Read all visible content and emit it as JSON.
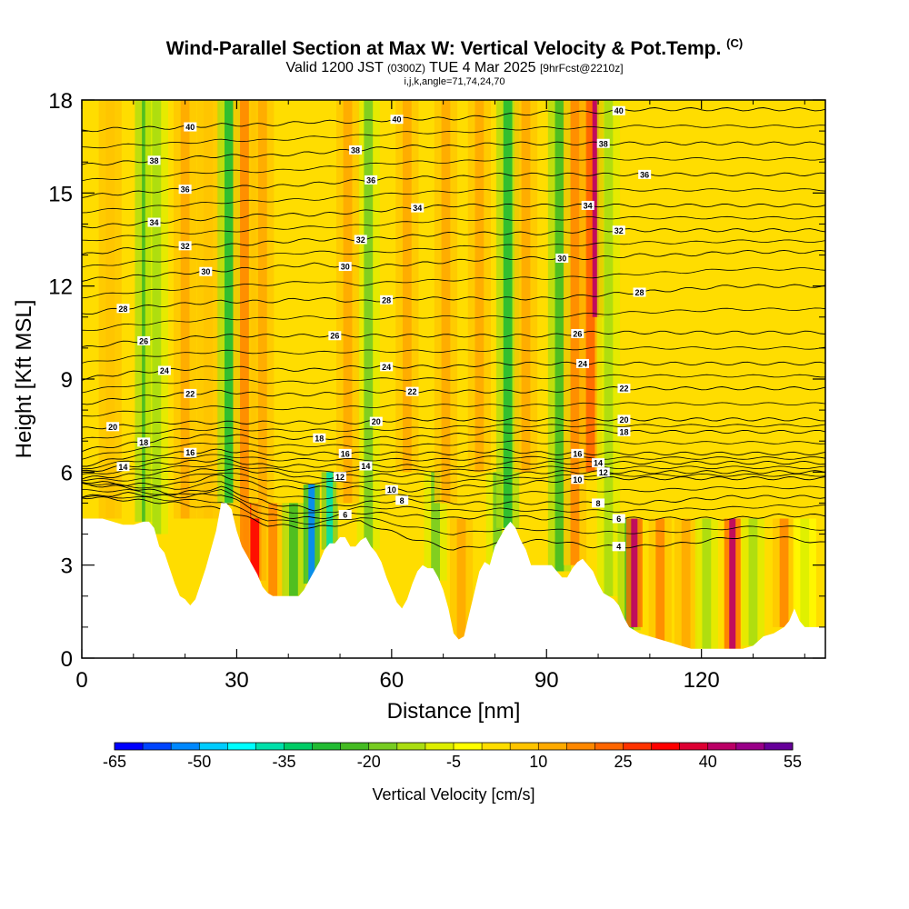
{
  "header": {
    "title": "Wind-Parallel Section at Max W: Vertical Velocity & Pot.Temp.",
    "title_mark": "(C)",
    "valid_prefix": "Valid 1200 JST",
    "valid_utc": "(0300Z)",
    "valid_date": "TUE 4 Mar 2025",
    "forecast": "[9hrFcst@2210z]",
    "grid_info": "i,j,k,angle=71,74,24,70"
  },
  "chart_data": {
    "type": "heatmap",
    "xlabel": "Distance [nm]",
    "ylabel": "Height [Kft MSL]",
    "xlim": [
      0,
      144
    ],
    "ylim": [
      0,
      18
    ],
    "x_ticks": [
      0,
      30,
      60,
      90,
      120
    ],
    "y_ticks": [
      0,
      3,
      6,
      9,
      12,
      15,
      18
    ],
    "x_tick_labels": [
      "0",
      "30",
      "60",
      "90",
      "120"
    ],
    "y_tick_labels": [
      "0",
      "3",
      "6",
      "9",
      "12",
      "15",
      "18"
    ],
    "colorbar": {
      "label": "Vertical Velocity [cm/s]",
      "min": -65,
      "max": 55,
      "step": 5,
      "tick_values": [
        -65,
        -50,
        -35,
        -20,
        -5,
        10,
        25,
        40,
        55
      ],
      "tick_labels": [
        "-65",
        "-50",
        "-35",
        "-20",
        "-5",
        "10",
        "25",
        "40",
        "55"
      ],
      "colors": [
        "#0000ff",
        "#0044ff",
        "#0088ff",
        "#00ccff",
        "#00ffff",
        "#00e0aa",
        "#00cc66",
        "#22bb33",
        "#44bb22",
        "#77cc22",
        "#aadd11",
        "#ddee00",
        "#ffff00",
        "#ffdd00",
        "#ffc400",
        "#ffaa00",
        "#ff8800",
        "#ff6600",
        "#ff3300",
        "#ff0000",
        "#dd0033",
        "#bb0066",
        "#990088",
        "#660099"
      ]
    },
    "terrain": [
      [
        0,
        4.5
      ],
      [
        4,
        4.5
      ],
      [
        6,
        4.4
      ],
      [
        8,
        4.3
      ],
      [
        10,
        4.3
      ],
      [
        12,
        4.4
      ],
      [
        13,
        4.4
      ],
      [
        14,
        4.2
      ],
      [
        15,
        3.6
      ],
      [
        16,
        3.4
      ],
      [
        17,
        2.9
      ],
      [
        18,
        2.4
      ],
      [
        19,
        2.0
      ],
      [
        20,
        1.9
      ],
      [
        21,
        1.7
      ],
      [
        22,
        1.9
      ],
      [
        23,
        2.4
      ],
      [
        24,
        2.9
      ],
      [
        25,
        3.5
      ],
      [
        26,
        4.1
      ],
      [
        27,
        5.0
      ],
      [
        28,
        5.0
      ],
      [
        29,
        4.8
      ],
      [
        30,
        4.1
      ],
      [
        31,
        3.6
      ],
      [
        32,
        3.3
      ],
      [
        33,
        3.0
      ],
      [
        34,
        2.7
      ],
      [
        35,
        2.3
      ],
      [
        36,
        2.1
      ],
      [
        37,
        2.0
      ],
      [
        38,
        2.0
      ],
      [
        40,
        2.0
      ],
      [
        42,
        2.0
      ],
      [
        43,
        2.2
      ],
      [
        44,
        2.5
      ],
      [
        45,
        2.8
      ],
      [
        46,
        3.1
      ],
      [
        47,
        3.5
      ],
      [
        48,
        3.7
      ],
      [
        49,
        3.7
      ],
      [
        50,
        3.9
      ],
      [
        51,
        3.9
      ],
      [
        52,
        3.6
      ],
      [
        53,
        3.6
      ],
      [
        54,
        3.8
      ],
      [
        55,
        3.9
      ],
      [
        56,
        3.6
      ],
      [
        57,
        3.4
      ],
      [
        58,
        3.1
      ],
      [
        59,
        2.6
      ],
      [
        60,
        2.2
      ],
      [
        61,
        1.8
      ],
      [
        62,
        1.6
      ],
      [
        63,
        1.9
      ],
      [
        64,
        2.4
      ],
      [
        65,
        2.8
      ],
      [
        66,
        3.0
      ],
      [
        67,
        2.9
      ],
      [
        68,
        2.9
      ],
      [
        69,
        2.6
      ],
      [
        70,
        2.2
      ],
      [
        71,
        1.6
      ],
      [
        72,
        0.8
      ],
      [
        73,
        0.6
      ],
      [
        74,
        0.7
      ],
      [
        75,
        1.4
      ],
      [
        76,
        2.1
      ],
      [
        77,
        2.8
      ],
      [
        78,
        3.1
      ],
      [
        79,
        3.0
      ],
      [
        80,
        3.6
      ],
      [
        81,
        3.9
      ],
      [
        82,
        4.2
      ],
      [
        83,
        4.4
      ],
      [
        84,
        4.2
      ],
      [
        85,
        3.8
      ],
      [
        86,
        3.5
      ],
      [
        87,
        3.0
      ],
      [
        89,
        3.0
      ],
      [
        91,
        3.0
      ],
      [
        92,
        2.8
      ],
      [
        93,
        2.6
      ],
      [
        94,
        2.6
      ],
      [
        95,
        2.9
      ],
      [
        96,
        3.1
      ],
      [
        97,
        3.2
      ],
      [
        98,
        3.0
      ],
      [
        99,
        2.8
      ],
      [
        100,
        2.4
      ],
      [
        101,
        2.1
      ],
      [
        102,
        2.0
      ],
      [
        103,
        1.9
      ],
      [
        104,
        1.7
      ],
      [
        105,
        1.3
      ],
      [
        106,
        1.0
      ],
      [
        107,
        0.9
      ],
      [
        108,
        0.8
      ],
      [
        110,
        0.7
      ],
      [
        112,
        0.6
      ],
      [
        114,
        0.5
      ],
      [
        116,
        0.4
      ],
      [
        118,
        0.3
      ],
      [
        120,
        0.3
      ],
      [
        122,
        0.3
      ],
      [
        124,
        0.3
      ],
      [
        126,
        0.3
      ],
      [
        128,
        0.3
      ],
      [
        130,
        0.4
      ],
      [
        132,
        0.7
      ],
      [
        134,
        0.8
      ],
      [
        136,
        1.0
      ],
      [
        137,
        1.2
      ],
      [
        138,
        1.6
      ],
      [
        139,
        1.2
      ],
      [
        140,
        1.0
      ],
      [
        142,
        1.0
      ],
      [
        144,
        1.0
      ]
    ],
    "updraft_columns": [
      {
        "x": 5.5,
        "z0": 4.5,
        "z1": 18,
        "w": 8
      },
      {
        "x": 12.5,
        "z0": 4.4,
        "z1": 18,
        "w": -22
      },
      {
        "x": 14.5,
        "z0": 4.0,
        "z1": 18,
        "w": -12
      },
      {
        "x": 20.0,
        "z0": 4.5,
        "z1": 18,
        "w": 12
      },
      {
        "x": 24.5,
        "z0": 4.5,
        "z1": 18,
        "w": 8
      },
      {
        "x": 28.5,
        "z0": 5.0,
        "z1": 18,
        "w": -30
      },
      {
        "x": 31.5,
        "z0": 2.5,
        "z1": 18,
        "w": 15
      },
      {
        "x": 33.5,
        "z0": 2.5,
        "z1": 5,
        "w": 30
      },
      {
        "x": 35.0,
        "z0": 4.5,
        "z1": 18,
        "w": 10
      },
      {
        "x": 37.0,
        "z0": 2.0,
        "z1": 5,
        "w": 15
      },
      {
        "x": 41.0,
        "z0": 2.0,
        "z1": 5,
        "w": -25
      },
      {
        "x": 44.5,
        "z0": 2.4,
        "z1": 5.6,
        "w": -55
      },
      {
        "x": 48.0,
        "z0": 3.5,
        "z1": 6,
        "w": -40
      },
      {
        "x": 55.5,
        "z0": 3.5,
        "z1": 18,
        "w": -18
      },
      {
        "x": 51.5,
        "z0": 5,
        "z1": 18,
        "w": 10
      },
      {
        "x": 63.0,
        "z0": 6,
        "z1": 18,
        "w": 12
      },
      {
        "x": 68.5,
        "z0": 2.5,
        "z1": 6,
        "w": -20
      },
      {
        "x": 70.5,
        "z0": 5,
        "z1": 18,
        "w": 10
      },
      {
        "x": 73.5,
        "z0": 0.6,
        "z1": 4.5,
        "w": 12
      },
      {
        "x": 77.0,
        "z0": 6,
        "z1": 18,
        "w": 10
      },
      {
        "x": 80.5,
        "z0": 3.0,
        "z1": 6,
        "w": -18
      },
      {
        "x": 82.5,
        "z0": 4.2,
        "z1": 18,
        "w": -28
      },
      {
        "x": 86.0,
        "z0": 6,
        "z1": 18,
        "w": 12
      },
      {
        "x": 92.5,
        "z0": 2.8,
        "z1": 18,
        "w": -22
      },
      {
        "x": 95.5,
        "z0": 3.0,
        "z1": 18,
        "w": 15
      },
      {
        "x": 98.5,
        "z0": 6,
        "z1": 18,
        "w": 22
      },
      {
        "x": 99.5,
        "z0": 11,
        "z1": 18,
        "w": 40
      },
      {
        "x": 102.0,
        "z0": 2.0,
        "z1": 18,
        "w": -15
      },
      {
        "x": 106.0,
        "z0": 0.9,
        "z1": 4.5,
        "w": -25
      },
      {
        "x": 107.0,
        "z0": 1.0,
        "z1": 4.5,
        "w": 40
      },
      {
        "x": 112.0,
        "z0": 0.5,
        "z1": 4.5,
        "w": 18
      },
      {
        "x": 117.0,
        "z0": 0.3,
        "z1": 4.5,
        "w": 12
      },
      {
        "x": 121.0,
        "z0": 0.3,
        "z1": 4.5,
        "w": -15
      },
      {
        "x": 126.0,
        "z0": 0.3,
        "z1": 4.5,
        "w": 42
      },
      {
        "x": 130.0,
        "z0": 0.4,
        "z1": 4.5,
        "w": -12
      },
      {
        "x": 136.0,
        "z0": 1.0,
        "z1": 4.5,
        "w": 15
      },
      {
        "x": 140.0,
        "z0": 1.0,
        "z1": 4.5,
        "w": -8
      }
    ],
    "isentropes": [
      {
        "theta": 4,
        "z": [
          5.2,
          5.1,
          5.0,
          4.8,
          4.3,
          4.2,
          4.4,
          3.9,
          3.5,
          3.7,
          3.8,
          3.6,
          3.6,
          3.7,
          3.9,
          3.9,
          3.7
        ],
        "show_label": true,
        "label_x": 104
      },
      {
        "theta": 6,
        "z": [
          5.2,
          5.3,
          5.2,
          5.3,
          4.6,
          4.5,
          4.7,
          4.6,
          4.5,
          4.6,
          4.5,
          4.5,
          4.5,
          4.5,
          4.5,
          4.6,
          4.6
        ],
        "show_label": true,
        "label_x": 104
      },
      {
        "theta": 8,
        "z": [
          5.6,
          5.5,
          5.3,
          5.5,
          5.0,
          4.8,
          5.0,
          5.1,
          5.0,
          5.0,
          5.0,
          5.0,
          5.0,
          5.1,
          5.2,
          5.2,
          5.2
        ],
        "show_label": true,
        "label_x": 62
      },
      {
        "theta": 10,
        "z": [
          5.7,
          5.6,
          5.6,
          5.9,
          5.5,
          5.5,
          5.5,
          5.4,
          5.5,
          5.6,
          5.7,
          5.8,
          5.8,
          5.8,
          5.8,
          5.8,
          5.8
        ],
        "show_label": true,
        "label_x": 60
      },
      {
        "theta": 12,
        "z": [
          5.8,
          5.9,
          6.0,
          6.1,
          6.0,
          5.8,
          5.9,
          5.9,
          5.9,
          5.9,
          6.0,
          6.0,
          6.0,
          6.0,
          6.0,
          6.0,
          6.0
        ],
        "show_label": true,
        "label_x": 50
      },
      {
        "theta": 14,
        "z": [
          6.0,
          6.2,
          6.3,
          6.4,
          6.2,
          6.2,
          6.2,
          6.2,
          6.2,
          6.3,
          6.3,
          6.3,
          6.3,
          6.3,
          6.3,
          6.3,
          6.3
        ],
        "show_label": true,
        "label_x": 8
      },
      {
        "theta": 16,
        "z": [
          6.2,
          6.5,
          6.6,
          6.7,
          6.6,
          6.6,
          6.6,
          6.6,
          6.6,
          6.7,
          6.6,
          6.6,
          6.6,
          6.6,
          6.6,
          6.6,
          6.6
        ],
        "show_label": true,
        "label_x": 21
      },
      {
        "theta": 18,
        "z": [
          6.7,
          6.9,
          7.1,
          7.2,
          7.1,
          7.1,
          7.1,
          7.1,
          7.2,
          7.3,
          7.3,
          7.3,
          7.3,
          7.3,
          7.3,
          7.3,
          7.3
        ],
        "show_label": true,
        "label_x": 12
      },
      {
        "theta": 20,
        "z": [
          7.4,
          7.5,
          7.6,
          7.6,
          7.6,
          7.6,
          7.6,
          7.7,
          7.7,
          7.7,
          7.7,
          7.7,
          7.7,
          7.7,
          7.7,
          7.7,
          7.7
        ],
        "show_label": true,
        "label_x": 6
      },
      {
        "theta": 22,
        "z": [
          8.2,
          8.4,
          8.5,
          8.6,
          8.5,
          8.5,
          8.6,
          8.6,
          8.6,
          8.6,
          8.6,
          8.7,
          8.7,
          8.7,
          8.7,
          8.7,
          8.7
        ],
        "show_label": true,
        "label_x": 21
      },
      {
        "theta": 24,
        "z": [
          9.0,
          9.2,
          9.3,
          9.4,
          9.3,
          9.3,
          9.4,
          9.4,
          9.4,
          9.5,
          9.5,
          9.5,
          9.5,
          9.5,
          9.5,
          9.5,
          9.5
        ],
        "show_label": true,
        "label_x": 16
      },
      {
        "theta": 26,
        "z": [
          10.0,
          10.2,
          10.3,
          10.4,
          10.4,
          10.4,
          10.4,
          10.4,
          10.4,
          10.4,
          10.4,
          10.5,
          10.5,
          10.5,
          10.5,
          10.5,
          10.5
        ],
        "show_label": true,
        "label_x": 12
      },
      {
        "theta": 28,
        "z": [
          11.1,
          11.3,
          11.4,
          11.5,
          11.5,
          11.6,
          11.5,
          11.6,
          11.6,
          11.6,
          11.6,
          11.7,
          11.8,
          11.9,
          12.0,
          12.0,
          12.0
        ],
        "show_label": true,
        "label_x": 8
      },
      {
        "theta": 30,
        "z": [
          12.2,
          12.3,
          12.4,
          12.5,
          12.6,
          12.7,
          12.6,
          12.7,
          12.8,
          12.9,
          12.9,
          12.9,
          13.0,
          13.0,
          13.1,
          13.1,
          13.1
        ],
        "show_label": true,
        "label_x": 24
      },
      {
        "theta": 32,
        "z": [
          13.0,
          13.2,
          13.3,
          13.3,
          13.4,
          13.5,
          13.5,
          13.6,
          13.7,
          13.7,
          13.7,
          13.8,
          13.8,
          13.8,
          13.8,
          13.8,
          13.8
        ],
        "show_label": true,
        "label_x": 20
      },
      {
        "theta": 34,
        "z": [
          13.9,
          14.0,
          14.1,
          14.2,
          14.3,
          14.3,
          14.4,
          14.5,
          14.6,
          14.6,
          14.6,
          14.6,
          14.6,
          14.6,
          14.6,
          14.6,
          14.6
        ],
        "show_label": true,
        "label_x": 14
      },
      {
        "theta": 36,
        "z": [
          14.9,
          15.0,
          15.1,
          15.2,
          15.2,
          15.3,
          15.4,
          15.5,
          15.5,
          15.6,
          15.6,
          15.6,
          15.6,
          15.6,
          15.6,
          15.6,
          15.6
        ],
        "show_label": true,
        "label_x": 20
      },
      {
        "theta": 38,
        "z": [
          15.9,
          16.0,
          16.1,
          16.2,
          16.2,
          16.3,
          16.4,
          16.5,
          16.5,
          16.6,
          16.6,
          16.6,
          16.6,
          16.6,
          16.6,
          16.6,
          16.6
        ],
        "show_label": true,
        "label_x": 14
      },
      {
        "theta": 40,
        "z": [
          17.0,
          17.1,
          17.1,
          17.2,
          17.2,
          17.3,
          17.3,
          17.4,
          17.4,
          17.5,
          17.6,
          17.6,
          17.7,
          17.7,
          17.7,
          17.7,
          17.7
        ],
        "show_label": true,
        "label_x": 21
      }
    ],
    "isentrope_x": [
      0,
      9,
      18,
      27,
      36,
      45,
      54,
      63,
      72,
      81,
      90,
      99,
      108,
      117,
      126,
      135,
      144
    ],
    "extra_labels": [
      {
        "theta": 40,
        "x": 61
      },
      {
        "theta": 40,
        "x": 104
      },
      {
        "theta": 38,
        "x": 53
      },
      {
        "theta": 38,
        "x": 101
      },
      {
        "theta": 36,
        "x": 56
      },
      {
        "theta": 36,
        "x": 109
      },
      {
        "theta": 34,
        "x": 65
      },
      {
        "theta": 34,
        "x": 98
      },
      {
        "theta": 32,
        "x": 54
      },
      {
        "theta": 32,
        "x": 104
      },
      {
        "theta": 30,
        "x": 51
      },
      {
        "theta": 30,
        "x": 93
      },
      {
        "theta": 28,
        "x": 59
      },
      {
        "theta": 28,
        "x": 108
      },
      {
        "theta": 26,
        "x": 49
      },
      {
        "theta": 26,
        "x": 96
      },
      {
        "theta": 24,
        "x": 59
      },
      {
        "theta": 24,
        "x": 97
      },
      {
        "theta": 22,
        "x": 64
      },
      {
        "theta": 22,
        "x": 105
      },
      {
        "theta": 20,
        "x": 57
      },
      {
        "theta": 20,
        "x": 105
      },
      {
        "theta": 18,
        "x": 46
      },
      {
        "theta": 18,
        "x": 105
      },
      {
        "theta": 16,
        "x": 51
      },
      {
        "theta": 16,
        "x": 96
      },
      {
        "theta": 14,
        "x": 55
      },
      {
        "theta": 14,
        "x": 100
      },
      {
        "theta": 12,
        "x": 101
      },
      {
        "theta": 10,
        "x": 96
      },
      {
        "theta": 8,
        "x": 100
      },
      {
        "theta": 6,
        "x": 51
      },
      {
        "theta": 4,
        "x": 104
      }
    ]
  }
}
